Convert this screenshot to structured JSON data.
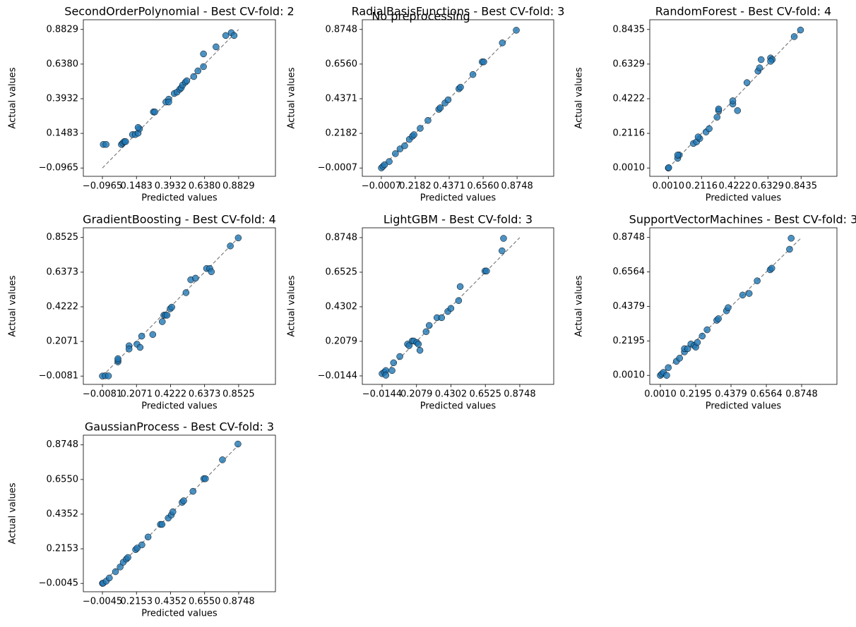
{
  "title": "No preprocessing",
  "chart_data": [
    {
      "type": "scatter",
      "title": "SecondOrderPolynomial - Best CV-fold: 2",
      "x_label": "Predicted values",
      "y_label": "Actual values",
      "color": "#1f77b4",
      "xlim": [
        -0.2336,
        1.1473
      ],
      "ylim": [
        -0.1553,
        0.9515
      ],
      "xticks": [
        {
          "value": -0.0965,
          "label": "−0.0965"
        },
        0.1483,
        0.3932,
        {
          "value": 0.638,
          "label": "0.6380"
        },
        0.8829
      ],
      "yticks": [
        {
          "value": -0.0965,
          "label": "−0.0965"
        },
        0.1483,
        0.3932,
        {
          "value": 0.638,
          "label": "0.6380"
        },
        0.8829
      ],
      "x": [
        -0.09,
        -0.07,
        0.04,
        0.05,
        0.06,
        0.07,
        0.12,
        0.14,
        0.16,
        0.17,
        0.16,
        0.27,
        0.28,
        0.36,
        0.38,
        0.38,
        0.42,
        0.44,
        0.46,
        0.47,
        0.48,
        0.5,
        0.51,
        0.56,
        0.59,
        0.63,
        0.63,
        0.72,
        0.79,
        0.83,
        0.85
      ],
      "values": [
        0.07,
        0.07,
        0.07,
        0.08,
        0.09,
        0.09,
        0.14,
        0.14,
        0.15,
        0.18,
        0.19,
        0.3,
        0.3,
        0.37,
        0.39,
        0.37,
        0.43,
        0.44,
        0.46,
        0.47,
        0.49,
        0.51,
        0.52,
        0.55,
        0.59,
        0.62,
        0.71,
        0.76,
        0.84,
        0.86,
        0.84
      ]
    },
    {
      "type": "scatter",
      "title": "RadialBasisFunctions - Best CV-fold: 3",
      "x_label": "Predicted values",
      "y_label": "Actual values",
      "color": "#1f77b4",
      "xlim": [
        -0.1233,
        1.1112
      ],
      "ylim": [
        -0.0532,
        0.9361
      ],
      "xticks": [
        {
          "value": -0.0007,
          "label": "−0.0007"
        },
        0.2182,
        0.4371,
        {
          "value": 0.656,
          "label": "0.6560"
        },
        0.8748
      ],
      "yticks": [
        {
          "value": -0.0007,
          "label": "−0.0007"
        },
        0.2182,
        0.4371,
        {
          "value": 0.656,
          "label": "0.6560"
        },
        0.8748
      ],
      "x": [
        0,
        0.01,
        0.02,
        0.05,
        0.09,
        0.12,
        0.15,
        0.18,
        0.2,
        0.21,
        0.25,
        0.3,
        0.37,
        0.38,
        0.41,
        0.43,
        0.5,
        0.51,
        0.59,
        0.65,
        0.66,
        0.78,
        0.87
      ],
      "values": [
        0,
        0.01,
        0.02,
        0.04,
        0.09,
        0.12,
        0.14,
        0.18,
        0.2,
        0.21,
        0.25,
        0.3,
        0.37,
        0.38,
        0.41,
        0.43,
        0.5,
        0.51,
        0.59,
        0.67,
        0.67,
        0.79,
        0.87
      ]
    },
    {
      "type": "scatter",
      "title": "RandomForest - Best CV-fold: 4",
      "x_label": "Predicted values",
      "y_label": "Actual values",
      "color": "#1f77b4",
      "xlim": [
        -0.117,
        1.071
      ],
      "ylim": [
        -0.0496,
        0.9025
      ],
      "xticks": [
        {
          "value": 0.001,
          "label": "0.0010"
        },
        0.2116,
        0.4222,
        0.6329,
        0.8435
      ],
      "yticks": [
        {
          "value": 0.001,
          "label": "0.0010"
        },
        0.2116,
        0.4222,
        0.6329,
        0.8435
      ],
      "x": [
        0.001,
        0.003,
        0.06,
        0.07,
        0.06,
        0.16,
        0.18,
        0.2,
        0.19,
        0.24,
        0.26,
        0.31,
        0.32,
        0.32,
        0.41,
        0.41,
        0.44,
        0.5,
        0.57,
        0.58,
        0.59,
        0.65,
        0.66,
        0.65,
        0.8,
        0.84
      ],
      "values": [
        0.001,
        0.003,
        0.06,
        0.08,
        0.08,
        0.15,
        0.16,
        0.18,
        0.19,
        0.22,
        0.24,
        0.31,
        0.35,
        0.36,
        0.39,
        0.41,
        0.35,
        0.52,
        0.59,
        0.61,
        0.66,
        0.67,
        0.66,
        0.65,
        0.8,
        0.84
      ]
    },
    {
      "type": "scatter",
      "title": "GradientBoosting - Best CV-fold: 4",
      "x_label": "Predicted values",
      "y_label": "Actual values",
      "color": "#1f77b4",
      "xlim": [
        -0.1286,
        1.0849
      ],
      "ylim": [
        -0.0597,
        0.9127
      ],
      "xticks": [
        {
          "value": -0.0081,
          "label": "−0.0081"
        },
        0.2071,
        0.4222,
        0.6373,
        0.8525
      ],
      "yticks": [
        {
          "value": -0.0081,
          "label": "−0.0081"
        },
        0.2071,
        0.4222,
        0.6373,
        0.8525
      ],
      "x": [
        -0.008,
        0.01,
        0.03,
        0.09,
        0.09,
        0.09,
        0.16,
        0.16,
        0.21,
        0.23,
        0.24,
        0.31,
        0.37,
        0.38,
        0.39,
        0.4,
        0.42,
        0.43,
        0.52,
        0.55,
        0.58,
        0.65,
        0.67,
        0.68,
        0.8,
        0.85
      ],
      "values": [
        -0.008,
        -0.006,
        -0.007,
        0.08,
        0.09,
        0.1,
        0.18,
        0.16,
        0.19,
        0.17,
        0.24,
        0.25,
        0.33,
        0.37,
        0.37,
        0.37,
        0.41,
        0.42,
        0.51,
        0.59,
        0.6,
        0.66,
        0.66,
        0.64,
        0.8,
        0.85
      ]
    },
    {
      "type": "scatter",
      "title": "LightGBM - Best CV-fold: 3",
      "x_label": "Predicted values",
      "y_label": "Actual values",
      "color": "#1f77b4",
      "xlim": [
        -0.142,
        1.094
      ],
      "ylim": [
        -0.069,
        0.938
      ],
      "xticks": [
        {
          "value": -0.0144,
          "label": "−0.0144"
        },
        0.2079,
        0.4302,
        0.6525,
        0.8748
      ],
      "yticks": [
        {
          "value": -0.0144,
          "label": "−0.0144"
        },
        0.2079,
        0.4302,
        0.6525,
        0.8748
      ],
      "x": [
        -0.014,
        0,
        0.01,
        0.01,
        0.06,
        0.05,
        0.1,
        0.15,
        0.16,
        0.18,
        0.19,
        0.21,
        0.23,
        0.22,
        0.27,
        0.29,
        0.34,
        0.37,
        0.41,
        0.43,
        0.48,
        0.49,
        0.65,
        0.66,
        0.76,
        0.77
      ],
      "values": [
        0,
        0.01,
        0.02,
        -0.01,
        0.07,
        0.02,
        0.11,
        0.19,
        0.18,
        0.21,
        0.21,
        0.2,
        0.15,
        0.19,
        0.27,
        0.31,
        0.36,
        0.36,
        0.4,
        0.42,
        0.47,
        0.56,
        0.66,
        0.66,
        0.79,
        0.87
      ]
    },
    {
      "type": "scatter",
      "title": "SupportVectorMachines - Best CV-fold: 3",
      "x_label": "Predicted values",
      "y_label": "Actual values",
      "color": "#1f77b4",
      "xlim": [
        -0.0645,
        1.093
      ],
      "ylim": [
        -0.056,
        0.936
      ],
      "xticks": [
        {
          "value": 0.001,
          "label": "0.0010"
        },
        0.2195,
        0.4379,
        0.6564,
        0.8748
      ],
      "yticks": [
        {
          "value": 0.001,
          "label": "0.0010"
        },
        0.2195,
        0.4379,
        0.6564,
        0.8748
      ],
      "x": [
        0.001,
        0.01,
        0.02,
        0.04,
        0.05,
        0.1,
        0.12,
        0.15,
        0.15,
        0.17,
        0.19,
        0.21,
        0.22,
        0.23,
        0.26,
        0.29,
        0.35,
        0.36,
        0.41,
        0.42,
        0.51,
        0.55,
        0.6,
        0.68,
        0.69,
        0.8,
        0.81
      ],
      "values": [
        0.001,
        0.01,
        0.02,
        0.001,
        0.05,
        0.09,
        0.11,
        0.15,
        0.17,
        0.17,
        0.2,
        0.19,
        0.18,
        0.21,
        0.25,
        0.29,
        0.35,
        0.36,
        0.41,
        0.43,
        0.51,
        0.52,
        0.6,
        0.67,
        0.68,
        0.8,
        0.87
      ]
    },
    {
      "type": "scatter",
      "title": "GaussianProcess - Best CV-fold: 3",
      "x_label": "Predicted values",
      "y_label": "Actual values",
      "color": "#1f77b4",
      "xlim": [
        -0.1276,
        1.112
      ],
      "ylim": [
        -0.0573,
        0.9363
      ],
      "xticks": [
        {
          "value": -0.0045,
          "label": "−0.0045"
        },
        0.2153,
        0.4352,
        {
          "value": 0.655,
          "label": "0.6550"
        },
        0.8748
      ],
      "yticks": [
        {
          "value": -0.0045,
          "label": "−0.0045"
        },
        0.2153,
        0.4352,
        {
          "value": 0.655,
          "label": "0.6550"
        },
        0.8748
      ],
      "x": [
        -0.004,
        0,
        0.02,
        0.04,
        0.08,
        0.11,
        0.13,
        0.15,
        0.16,
        0.21,
        0.22,
        0.25,
        0.29,
        0.37,
        0.38,
        0.42,
        0.44,
        0.45,
        0.51,
        0.52,
        0.58,
        0.65,
        0.66,
        0.77,
        0.87
      ],
      "values": [
        -0.004,
        -0.003,
        0.01,
        0.03,
        0.07,
        0.1,
        0.13,
        0.15,
        0.16,
        0.21,
        0.22,
        0.24,
        0.29,
        0.37,
        0.37,
        0.41,
        0.43,
        0.45,
        0.51,
        0.52,
        0.58,
        0.66,
        0.66,
        0.78,
        0.88
      ]
    }
  ]
}
